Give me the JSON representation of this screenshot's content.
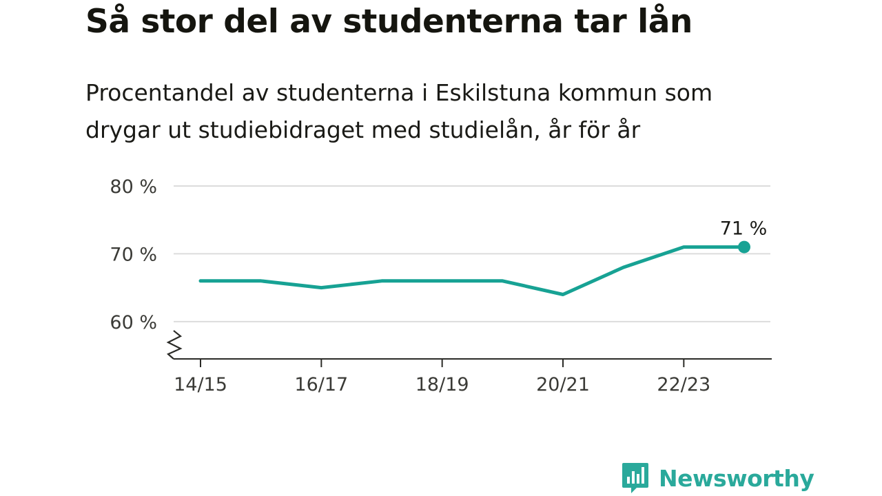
{
  "title": "Så stor del av studenterna tar lån",
  "subtitle": "Procentandel av studenterna i Eskilstuna kommun som drygar ut studiebidraget med studielån, år för år",
  "brand": {
    "name": "Newsworthy"
  },
  "colors": {
    "series": "#17a294",
    "grid": "#dcdcdc",
    "axis": "#2b2b27",
    "brand": "#2aa99b"
  },
  "chart_data": {
    "type": "line",
    "title": "Så stor del av studenterna tar lån",
    "subtitle": "Procentandel av studenterna i Eskilstuna kommun som drygar ut studiebidraget med studielån, år för år",
    "x": [
      "14/15",
      "15/16",
      "16/17",
      "17/18",
      "18/19",
      "19/20",
      "20/21",
      "21/22",
      "22/23",
      "23/24"
    ],
    "series": [
      {
        "values": [
          66,
          66,
          65,
          66,
          66,
          66,
          64,
          68,
          71,
          71
        ]
      }
    ],
    "xticks": [
      "14/15",
      "16/17",
      "18/19",
      "20/21",
      "22/23"
    ],
    "yticks": [
      {
        "value": 60,
        "label": "60 %"
      },
      {
        "value": 70,
        "label": "70 %"
      },
      {
        "value": 80,
        "label": "80 %"
      }
    ],
    "ylim": [
      54.5,
      80
    ],
    "axis_break": true,
    "grid": true,
    "end_label": "71 %"
  }
}
